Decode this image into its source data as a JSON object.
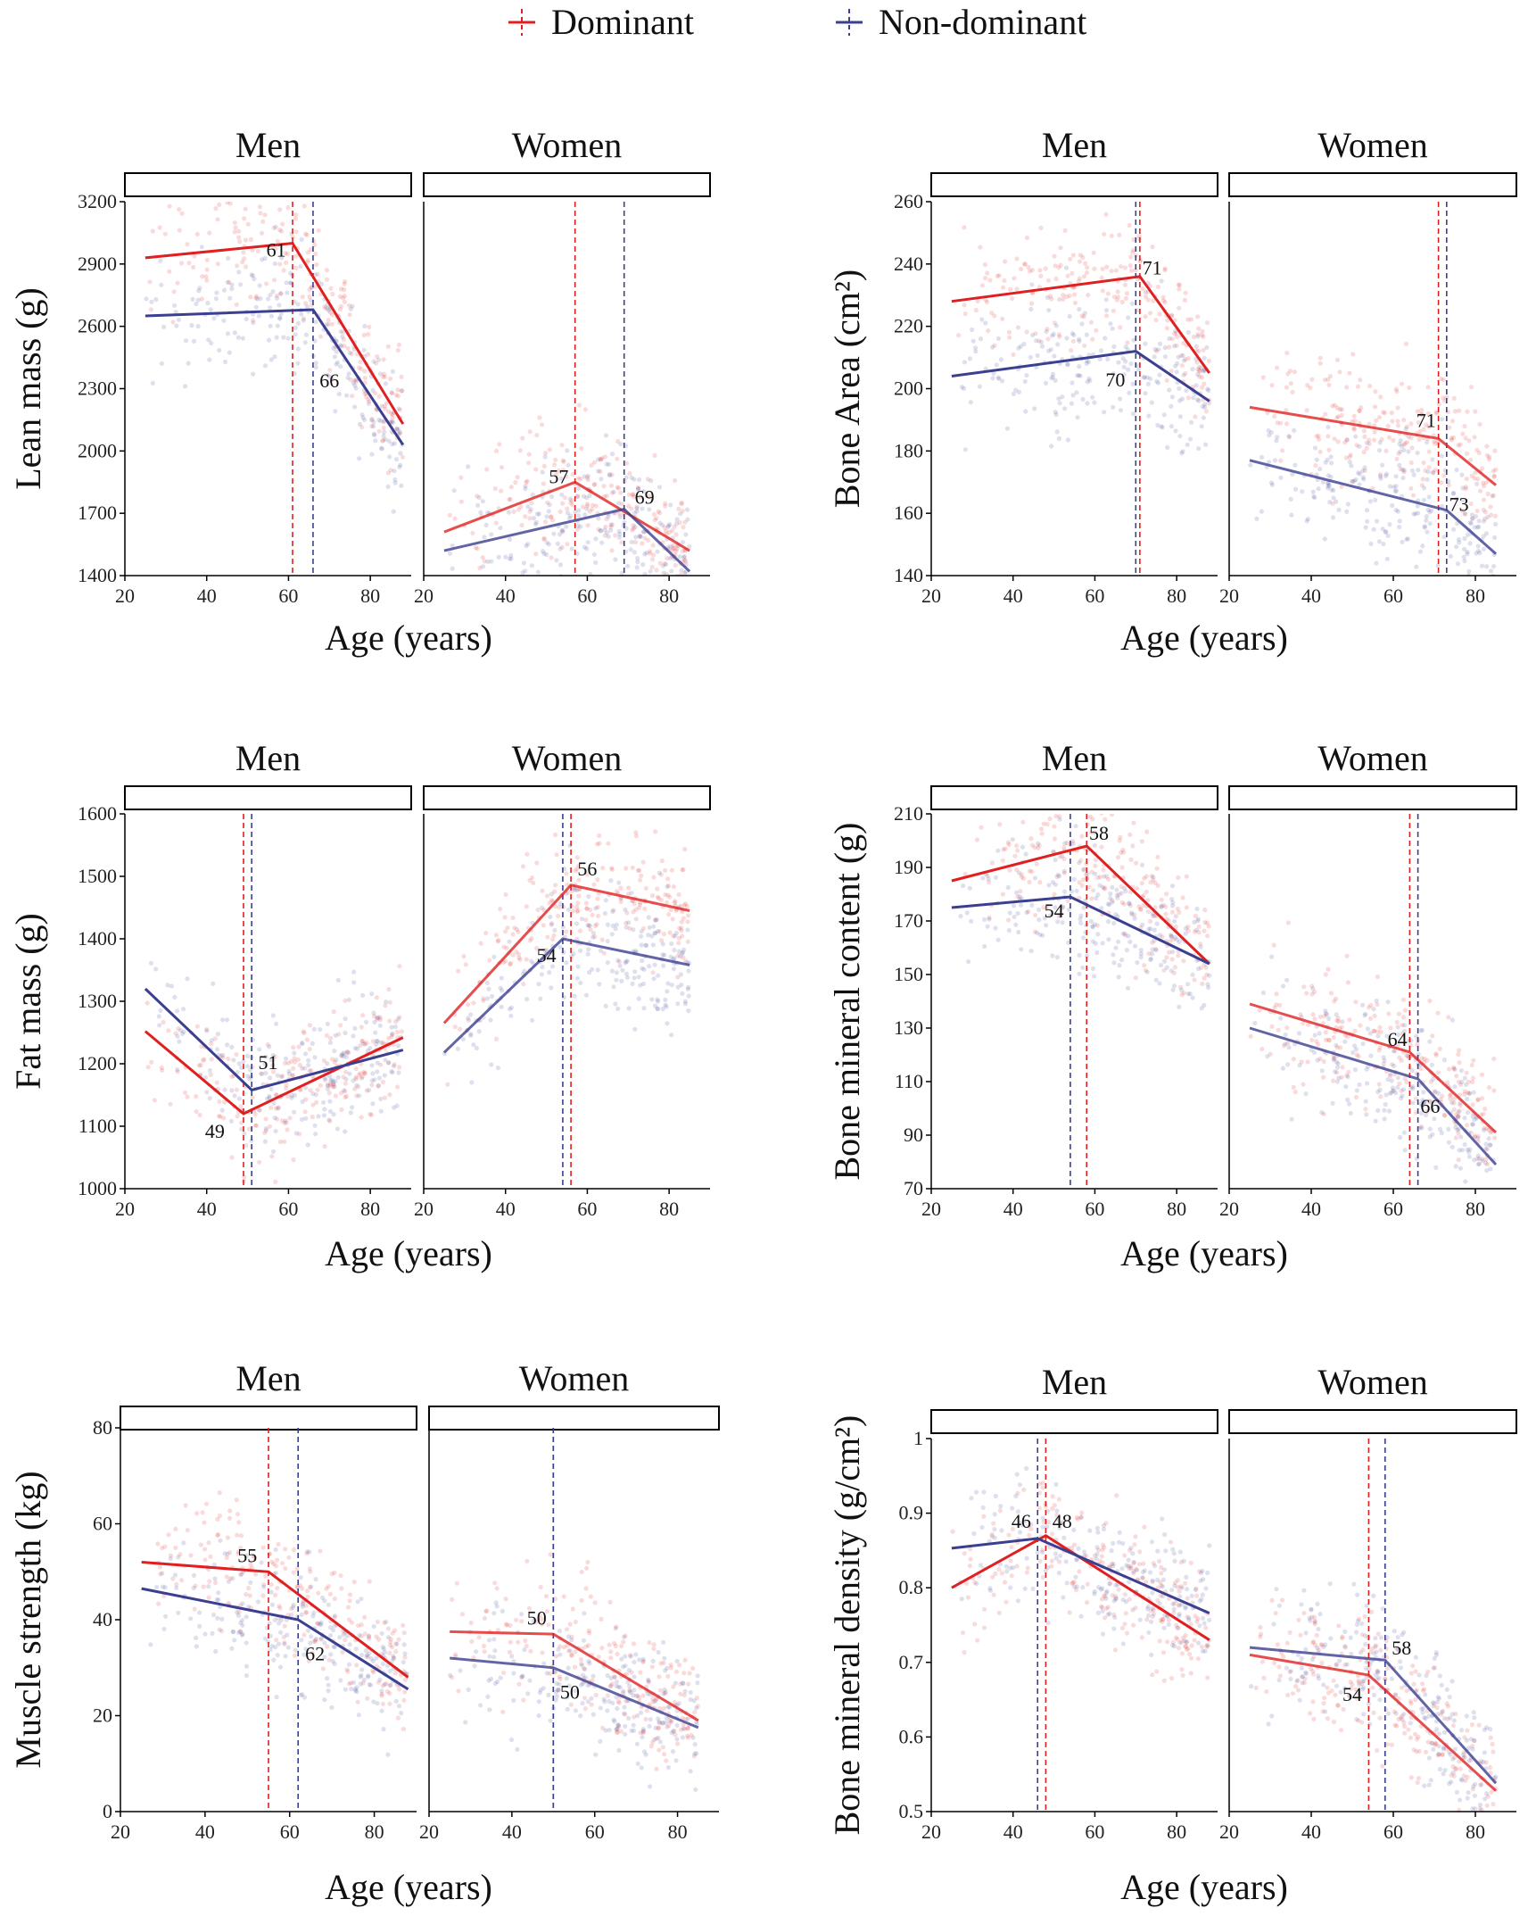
{
  "legend": {
    "items": [
      {
        "label": "Dominant",
        "color": "#e02020"
      },
      {
        "label": "Non-dominant",
        "color": "#3b3f8f"
      }
    ]
  },
  "chart_data": [
    {
      "type": "line",
      "id": "lean-mass",
      "ylabel": "Lean mass (g)",
      "xlabel": "Age (years)",
      "ylim": [
        1400,
        3200
      ],
      "yticks": [
        1400,
        1700,
        2000,
        2300,
        2600,
        2900,
        3200
      ],
      "xlim": [
        20,
        90
      ],
      "xticks": [
        20,
        40,
        60,
        80
      ],
      "facets": [
        {
          "label": "Men",
          "series": [
            {
              "name": "Dominant",
              "x": [
                25,
                61,
                88
              ],
              "y": [
                2930,
                3000,
                2130
              ]
            },
            {
              "name": "Non-dominant",
              "x": [
                25,
                66,
                88
              ],
              "y": [
                2650,
                2680,
                2030
              ]
            }
          ],
          "breakpoints": [
            {
              "series": "Dominant",
              "age": 61,
              "label": "61",
              "label_at": [
                57,
                2970
              ]
            },
            {
              "series": "Non-dominant",
              "age": 66,
              "label": "66",
              "label_at": [
                70,
                2340
              ]
            }
          ]
        },
        {
          "label": "Women",
          "series": [
            {
              "name": "Dominant",
              "x": [
                25,
                57,
                85
              ],
              "y": [
                1610,
                1850,
                1520
              ]
            },
            {
              "name": "Non-dominant",
              "x": [
                25,
                69,
                85
              ],
              "y": [
                1520,
                1720,
                1420
              ]
            }
          ],
          "breakpoints": [
            {
              "series": "Dominant",
              "age": 57,
              "label": "57",
              "label_at": [
                53,
                1880
              ]
            },
            {
              "series": "Non-dominant",
              "age": 69,
              "label": "69",
              "label_at": [
                74,
                1780
              ]
            }
          ]
        }
      ]
    },
    {
      "type": "line",
      "id": "bone-area",
      "ylabel": "Bone Area (cm²)",
      "xlabel": "Age (years)",
      "ylim": [
        140,
        260
      ],
      "yticks": [
        140,
        160,
        180,
        200,
        220,
        240,
        260
      ],
      "xlim": [
        20,
        90
      ],
      "xticks": [
        20,
        40,
        60,
        80
      ],
      "facets": [
        {
          "label": "Men",
          "series": [
            {
              "name": "Dominant",
              "x": [
                25,
                71,
                88
              ],
              "y": [
                228,
                236,
                205
              ]
            },
            {
              "name": "Non-dominant",
              "x": [
                25,
                70,
                88
              ],
              "y": [
                204,
                212,
                196
              ]
            }
          ],
          "breakpoints": [
            {
              "series": "Dominant",
              "age": 71,
              "label": "71",
              "label_at": [
                74,
                239
              ]
            },
            {
              "series": "Non-dominant",
              "age": 70,
              "label": "70",
              "label_at": [
                65,
                203
              ]
            }
          ]
        },
        {
          "label": "Women",
          "series": [
            {
              "name": "Dominant",
              "x": [
                25,
                71,
                85
              ],
              "y": [
                194,
                184,
                169
              ]
            },
            {
              "name": "Non-dominant",
              "x": [
                25,
                73,
                85
              ],
              "y": [
                177,
                161,
                147
              ]
            }
          ],
          "breakpoints": [
            {
              "series": "Dominant",
              "age": 71,
              "label": "71",
              "label_at": [
                68,
                190
              ]
            },
            {
              "series": "Non-dominant",
              "age": 73,
              "label": "73",
              "label_at": [
                76,
                163
              ]
            }
          ]
        }
      ]
    },
    {
      "type": "line",
      "id": "fat-mass",
      "ylabel": "Fat mass (g)",
      "xlabel": "Age (years)",
      "ylim": [
        1000,
        1600
      ],
      "yticks": [
        1000,
        1100,
        1200,
        1300,
        1400,
        1500,
        1600
      ],
      "xlim": [
        20,
        90
      ],
      "xticks": [
        20,
        40,
        60,
        80
      ],
      "facets": [
        {
          "label": "Men",
          "series": [
            {
              "name": "Dominant",
              "x": [
                25,
                49,
                88
              ],
              "y": [
                1252,
                1120,
                1242
              ]
            },
            {
              "name": "Non-dominant",
              "x": [
                25,
                51,
                88
              ],
              "y": [
                1320,
                1158,
                1222
              ]
            }
          ],
          "breakpoints": [
            {
              "series": "Dominant",
              "age": 49,
              "label": "49",
              "label_at": [
                42,
                1093
              ]
            },
            {
              "series": "Non-dominant",
              "age": 51,
              "label": "51",
              "label_at": [
                55,
                1203
              ]
            }
          ]
        },
        {
          "label": "Women",
          "series": [
            {
              "name": "Dominant",
              "x": [
                25,
                56,
                85
              ],
              "y": [
                1265,
                1486,
                1445
              ]
            },
            {
              "name": "Non-dominant",
              "x": [
                25,
                54,
                85
              ],
              "y": [
                1218,
                1400,
                1358
              ]
            }
          ],
          "breakpoints": [
            {
              "series": "Dominant",
              "age": 56,
              "label": "56",
              "label_at": [
                60,
                1513
              ]
            },
            {
              "series": "Non-dominant",
              "age": 54,
              "label": "54",
              "label_at": [
                50,
                1374
              ]
            }
          ]
        }
      ]
    },
    {
      "type": "line",
      "id": "bone-mineral-content",
      "ylabel": "Bone mineral content (g)",
      "xlabel": "Age (years)",
      "ylim": [
        70,
        210
      ],
      "yticks": [
        70,
        90,
        110,
        130,
        150,
        170,
        190,
        210
      ],
      "xlim": [
        20,
        90
      ],
      "xticks": [
        20,
        40,
        60,
        80
      ],
      "facets": [
        {
          "label": "Men",
          "series": [
            {
              "name": "Dominant",
              "x": [
                25,
                58,
                88
              ],
              "y": [
                185,
                198,
                154
              ]
            },
            {
              "name": "Non-dominant",
              "x": [
                25,
                54,
                88
              ],
              "y": [
                175,
                179,
                154
              ]
            }
          ],
          "breakpoints": [
            {
              "series": "Dominant",
              "age": 58,
              "label": "58",
              "label_at": [
                61,
                203
              ]
            },
            {
              "series": "Non-dominant",
              "age": 54,
              "label": "54",
              "label_at": [
                50,
                174
              ]
            }
          ]
        },
        {
          "label": "Women",
          "series": [
            {
              "name": "Dominant",
              "x": [
                25,
                64,
                85
              ],
              "y": [
                139,
                121,
                91
              ]
            },
            {
              "name": "Non-dominant",
              "x": [
                25,
                66,
                85
              ],
              "y": [
                130,
                111,
                79
              ]
            }
          ],
          "breakpoints": [
            {
              "series": "Dominant",
              "age": 64,
              "label": "64",
              "label_at": [
                61,
                126
              ]
            },
            {
              "series": "Non-dominant",
              "age": 66,
              "label": "66",
              "label_at": [
                69,
                101
              ]
            }
          ]
        }
      ]
    },
    {
      "type": "line",
      "id": "muscle-strength",
      "ylabel": "Muscle strength (kg)",
      "xlabel": "Age (years)",
      "ylim": [
        0,
        80
      ],
      "yticks": [
        0,
        20,
        40,
        60,
        80
      ],
      "xlim": [
        20,
        90
      ],
      "xticks": [
        20,
        40,
        60,
        80
      ],
      "facets": [
        {
          "label": "Men",
          "series": [
            {
              "name": "Dominant",
              "x": [
                25,
                55,
                88
              ],
              "y": [
                52,
                50,
                28
              ]
            },
            {
              "name": "Non-dominant",
              "x": [
                25,
                62,
                88
              ],
              "y": [
                46.5,
                40,
                25.5
              ]
            }
          ],
          "breakpoints": [
            {
              "series": "Dominant",
              "age": 55,
              "label": "55",
              "label_at": [
                50,
                53.5
              ]
            },
            {
              "series": "Non-dominant",
              "age": 62,
              "label": "62",
              "label_at": [
                66,
                33
              ]
            }
          ]
        },
        {
          "label": "Women",
          "series": [
            {
              "name": "Dominant",
              "x": [
                25,
                50,
                85
              ],
              "y": [
                37.5,
                37,
                19
              ]
            },
            {
              "name": "Non-dominant",
              "x": [
                25,
                50,
                85
              ],
              "y": [
                32,
                30,
                17.5
              ]
            }
          ],
          "breakpoints": [
            {
              "series": "Dominant",
              "age": 50,
              "label": "50",
              "label_at": [
                46,
                40.5
              ]
            },
            {
              "series": "Non-dominant",
              "age": 50,
              "label": "50",
              "label_at": [
                54,
                25
              ]
            }
          ]
        }
      ]
    },
    {
      "type": "line",
      "id": "bone-mineral-density",
      "ylabel": "Bone mineral density (g/cm²)",
      "xlabel": "Age (years)",
      "ylim": [
        0.5,
        1.0
      ],
      "yticks": [
        0.5,
        0.6,
        0.7,
        0.8,
        0.9,
        1.0
      ],
      "xlim": [
        20,
        90
      ],
      "xticks": [
        20,
        40,
        60,
        80
      ],
      "facets": [
        {
          "label": "Men",
          "series": [
            {
              "name": "Dominant",
              "x": [
                25,
                48,
                88
              ],
              "y": [
                0.8,
                0.87,
                0.73
              ]
            },
            {
              "name": "Non-dominant",
              "x": [
                25,
                46,
                88
              ],
              "y": [
                0.853,
                0.866,
                0.766
              ]
            }
          ],
          "breakpoints": [
            {
              "series": "Dominant",
              "age": 48,
              "label": "48",
              "label_at": [
                52,
                0.89
              ]
            },
            {
              "series": "Non-dominant",
              "age": 46,
              "label": "46",
              "label_at": [
                42,
                0.89
              ]
            }
          ]
        },
        {
          "label": "Women",
          "series": [
            {
              "name": "Dominant",
              "x": [
                25,
                54,
                85
              ],
              "y": [
                0.71,
                0.683,
                0.528
              ]
            },
            {
              "name": "Non-dominant",
              "x": [
                25,
                58,
                85
              ],
              "y": [
                0.72,
                0.703,
                0.538
              ]
            }
          ],
          "breakpoints": [
            {
              "series": "Dominant",
              "age": 54,
              "label": "54",
              "label_at": [
                50,
                0.658
              ]
            },
            {
              "series": "Non-dominant",
              "age": 58,
              "label": "58",
              "label_at": [
                62,
                0.72
              ]
            }
          ]
        }
      ]
    }
  ]
}
